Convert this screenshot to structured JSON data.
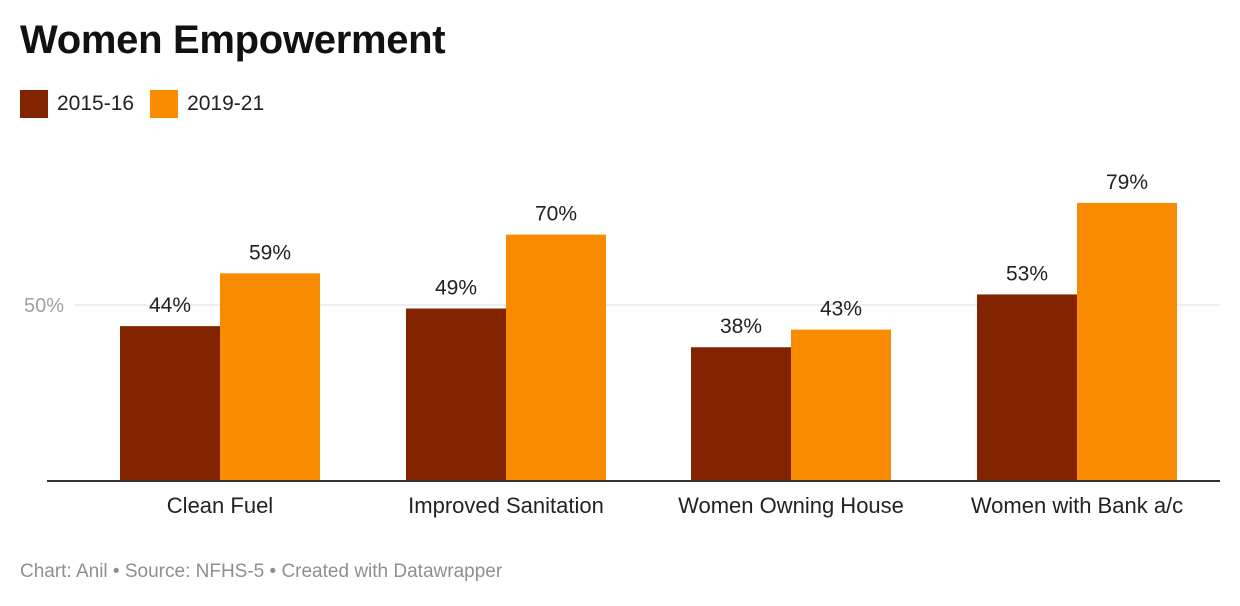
{
  "title": "Women Empowerment",
  "footer": "Chart: Anil • Source: NFHS-5 • Created with Datawrapper",
  "colors": {
    "series_2015": "#832400",
    "series_2019": "#f98b00",
    "grid": "#dcdcdc",
    "axis": "#333333",
    "tick_label": "#a0a0a0"
  },
  "chart_data": {
    "type": "bar",
    "title": "Women Empowerment",
    "categories": [
      "Clean Fuel",
      "Improved Sanitation",
      "Women Owning House",
      "Women with Bank a/c"
    ],
    "series": [
      {
        "name": "2015-16",
        "values": [
          44,
          49,
          38,
          53
        ],
        "labels": [
          "44%",
          "49%",
          "38%",
          "53%"
        ]
      },
      {
        "name": "2019-21",
        "values": [
          59,
          70,
          43,
          79
        ],
        "labels": [
          "59%",
          "70%",
          "43%",
          "79%"
        ]
      }
    ],
    "yticks": [
      50
    ],
    "ytick_labels": [
      "50%"
    ],
    "ylim": [
      0,
      100
    ],
    "grid": true,
    "legend_position": "top-left",
    "xlabel": "",
    "ylabel": ""
  }
}
